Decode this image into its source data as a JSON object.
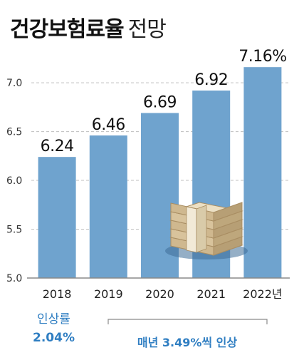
{
  "title": "건강보험료율",
  "subtitle": "전망",
  "colors": {
    "bar": "#6fa3ce",
    "accent": "#2f7ec2",
    "grid": "#bfbfbf",
    "axis": "#8a8a8a"
  },
  "chart_data": {
    "type": "bar",
    "categories": [
      "2018",
      "2019",
      "2020",
      "2021",
      "2022년"
    ],
    "values": [
      6.24,
      6.46,
      6.69,
      6.92,
      7.16
    ],
    "value_labels": [
      "6.24",
      "6.46",
      "6.69",
      "6.92",
      "7.16%"
    ],
    "yticks": [
      "5.0",
      "5.5",
      "6.0",
      "6.5",
      "7.0"
    ],
    "ylim": [
      5.0,
      7.3
    ],
    "grid": true,
    "title": "건강보험료율 전망",
    "xlabel": "",
    "ylabel": ""
  },
  "notes": {
    "left_label": "인상률",
    "left_value": "2.04%",
    "right_prefix": "매년 ",
    "right_value": "3.49%",
    "right_suffix": "씩 인상"
  }
}
